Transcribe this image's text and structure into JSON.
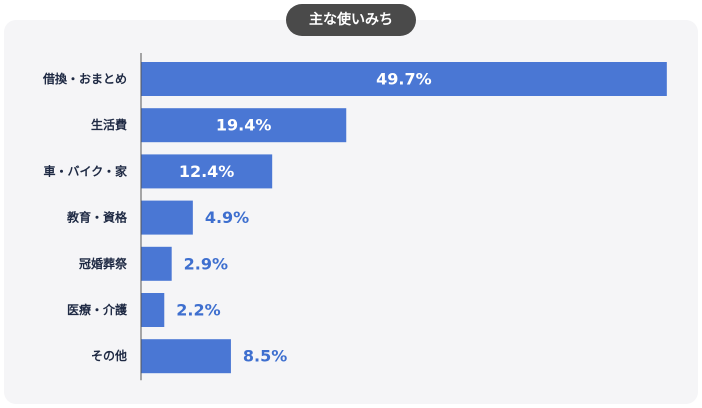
{
  "chart_data": {
    "type": "bar",
    "orientation": "horizontal",
    "title": "主な使いみち",
    "categories": [
      "借換・おまとめ",
      "生活費",
      "車・バイク・家",
      "教育・資格",
      "冠婚葬祭",
      "医療・介護",
      "その他"
    ],
    "values": [
      49.7,
      19.4,
      12.4,
      4.9,
      2.9,
      2.2,
      8.5
    ],
    "value_labels": [
      "49.7%",
      "19.4%",
      "12.4%",
      "4.9%",
      "2.9%",
      "2.2%",
      "8.5%"
    ],
    "xlim": [
      0,
      50
    ],
    "grid": false,
    "legend": "none",
    "bar_color": "#4a77d4",
    "label_color": "#3e6fcf",
    "category_label_color": "#1f2a44",
    "axis_color": "#555555"
  }
}
